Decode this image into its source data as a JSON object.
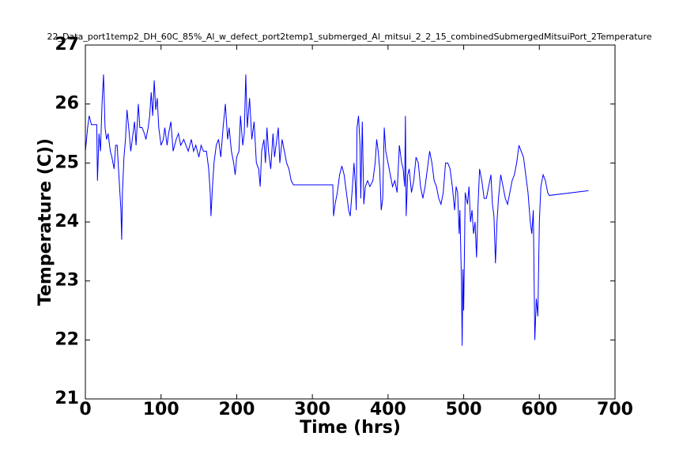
{
  "chart_data": {
    "type": "line",
    "title": "22_Data_port1temp2_DH_60C_85%_Al_w_defect_port2temp1_submerged_Al_mitsui_2_2_15_combinedSubmergedMitsuiPort_2Temperature",
    "xlabel": "Time (hrs)",
    "ylabel": "Temperature (C))",
    "xlim": [
      0,
      700
    ],
    "ylim": [
      21,
      27
    ],
    "xticks": [
      0,
      100,
      200,
      300,
      400,
      500,
      600,
      700
    ],
    "yticks": [
      21,
      22,
      23,
      24,
      25,
      26,
      27
    ],
    "grid": false,
    "series": [
      {
        "name": "Temperature",
        "color": "#0000ff",
        "x": [
          0,
          3,
          5,
          8,
          15,
          16,
          18,
          20,
          22,
          24,
          26,
          28,
          30,
          33,
          35,
          38,
          40,
          42,
          47,
          48,
          49,
          51,
          53,
          55,
          58,
          60,
          62,
          65,
          67,
          70,
          72,
          75,
          78,
          80,
          83,
          85,
          87,
          89,
          91,
          93,
          95,
          97,
          100,
          103,
          105,
          108,
          110,
          113,
          116,
          120,
          123,
          126,
          130,
          133,
          136,
          140,
          143,
          146,
          150,
          153,
          156,
          160,
          163,
          165,
          166,
          168,
          170,
          173,
          176,
          179,
          182,
          185,
          188,
          190,
          193,
          196,
          198,
          200,
          203,
          205,
          208,
          210,
          212,
          214,
          217,
          220,
          223,
          226,
          229,
          231,
          233,
          236,
          238,
          240,
          242,
          245,
          248,
          250,
          253,
          255,
          257,
          260,
          263,
          266,
          269,
          272,
          275,
          327,
          328,
          330,
          333,
          336,
          339,
          342,
          345,
          348,
          350,
          353,
          355,
          357,
          358,
          359,
          361,
          363,
          364,
          366,
          368,
          370,
          373,
          376,
          380,
          383,
          385,
          387,
          389,
          391,
          393,
          395,
          397,
          400,
          403,
          406,
          409,
          412,
          415,
          418,
          420,
          422,
          423,
          424,
          426,
          428,
          431,
          434,
          437,
          440,
          443,
          446,
          449,
          452,
          455,
          458,
          461,
          464,
          467,
          470,
          473,
          476,
          479,
          482,
          485,
          488,
          490,
          492,
          494,
          495,
          497,
          498,
          499,
          500,
          502,
          505,
          507,
          509,
          511,
          513,
          515,
          517,
          519,
          521,
          524,
          527,
          530,
          533,
          536,
          538,
          540,
          542,
          544,
          546,
          549,
          552,
          555,
          558,
          561,
          564,
          567,
          570,
          573,
          576,
          579,
          582,
          585,
          588,
          590,
          592,
          594,
          596,
          598,
          600,
          602,
          605,
          608,
          611,
          613,
          665
        ],
        "values": [
          25.2,
          25.6,
          25.8,
          25.65,
          25.65,
          24.7,
          25.5,
          25.2,
          26.0,
          26.5,
          25.6,
          25.4,
          25.5,
          25.2,
          25.1,
          24.9,
          25.3,
          25.3,
          24.2,
          23.7,
          24.5,
          25.1,
          25.4,
          25.9,
          25.5,
          25.2,
          25.4,
          25.7,
          25.3,
          26.0,
          25.6,
          25.6,
          25.5,
          25.4,
          25.6,
          25.8,
          26.2,
          25.8,
          26.4,
          25.9,
          26.1,
          25.6,
          25.3,
          25.4,
          25.6,
          25.3,
          25.5,
          25.7,
          25.2,
          25.4,
          25.5,
          25.3,
          25.4,
          25.3,
          25.2,
          25.4,
          25.2,
          25.3,
          25.1,
          25.3,
          25.2,
          25.2,
          24.9,
          24.5,
          24.1,
          24.6,
          25.0,
          25.3,
          25.4,
          25.1,
          25.6,
          26.0,
          25.4,
          25.6,
          25.2,
          25.0,
          24.8,
          25.1,
          25.2,
          25.8,
          25.3,
          25.5,
          26.5,
          25.6,
          26.1,
          25.4,
          25.7,
          25.0,
          24.9,
          24.6,
          25.2,
          25.4,
          25.0,
          25.6,
          25.2,
          24.9,
          25.5,
          25.1,
          25.4,
          25.6,
          25.0,
          25.4,
          25.2,
          25.0,
          24.9,
          24.7,
          24.63,
          24.63,
          24.1,
          24.3,
          24.5,
          24.8,
          24.95,
          24.8,
          24.5,
          24.2,
          24.1,
          24.6,
          25.0,
          24.6,
          24.2,
          25.6,
          25.8,
          25.3,
          24.4,
          25.7,
          24.3,
          24.6,
          24.7,
          24.6,
          24.7,
          25.0,
          25.4,
          25.2,
          24.9,
          24.2,
          24.4,
          25.6,
          25.2,
          25.0,
          24.8,
          24.6,
          24.7,
          24.5,
          25.3,
          25.0,
          24.9,
          24.6,
          25.8,
          24.1,
          24.8,
          24.9,
          24.5,
          24.7,
          25.1,
          25.0,
          24.6,
          24.4,
          24.6,
          24.9,
          25.2,
          25.0,
          24.7,
          24.6,
          24.4,
          24.3,
          24.5,
          25.0,
          25.0,
          24.9,
          24.6,
          24.2,
          24.6,
          24.5,
          23.8,
          24.2,
          23.0,
          21.9,
          23.2,
          22.5,
          24.5,
          24.3,
          24.6,
          24.0,
          24.2,
          23.8,
          24.0,
          23.4,
          24.3,
          24.9,
          24.7,
          24.4,
          24.4,
          24.6,
          24.8,
          24.3,
          24.1,
          23.3,
          24.0,
          24.4,
          24.8,
          24.6,
          24.4,
          24.3,
          24.5,
          24.7,
          24.8,
          25.0,
          25.3,
          25.2,
          25.1,
          24.8,
          24.5,
          24.0,
          23.8,
          24.2,
          22.0,
          22.7,
          22.4,
          24.0,
          24.6,
          24.8,
          24.7,
          24.5,
          24.45,
          24.53
        ]
      }
    ]
  }
}
